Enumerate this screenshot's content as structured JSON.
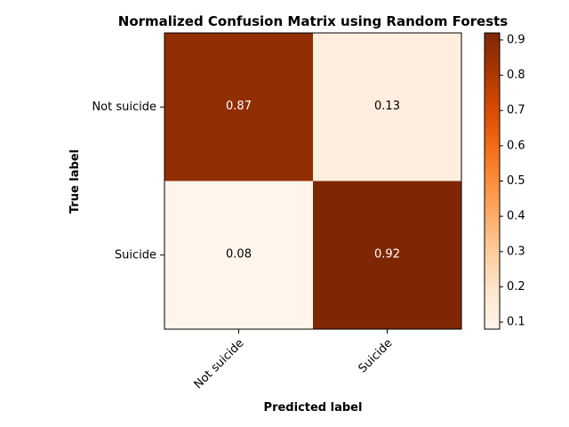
{
  "chart_data": {
    "type": "heatmap",
    "title": "Normalized Confusion Matrix using Random Forests",
    "xlabel": "Predicted label",
    "ylabel": "True label",
    "x_categories": [
      "Not suicide",
      "Suicide"
    ],
    "y_categories": [
      "Not suicide",
      "Suicide"
    ],
    "values": [
      [
        0.87,
        0.13
      ],
      [
        0.08,
        0.92
      ]
    ],
    "colormap": "Oranges",
    "colorbar": {
      "range": [
        0.08,
        0.92
      ],
      "ticks": [
        "0.1",
        "0.2",
        "0.3",
        "0.4",
        "0.5",
        "0.6",
        "0.7",
        "0.8",
        "0.9"
      ]
    }
  }
}
